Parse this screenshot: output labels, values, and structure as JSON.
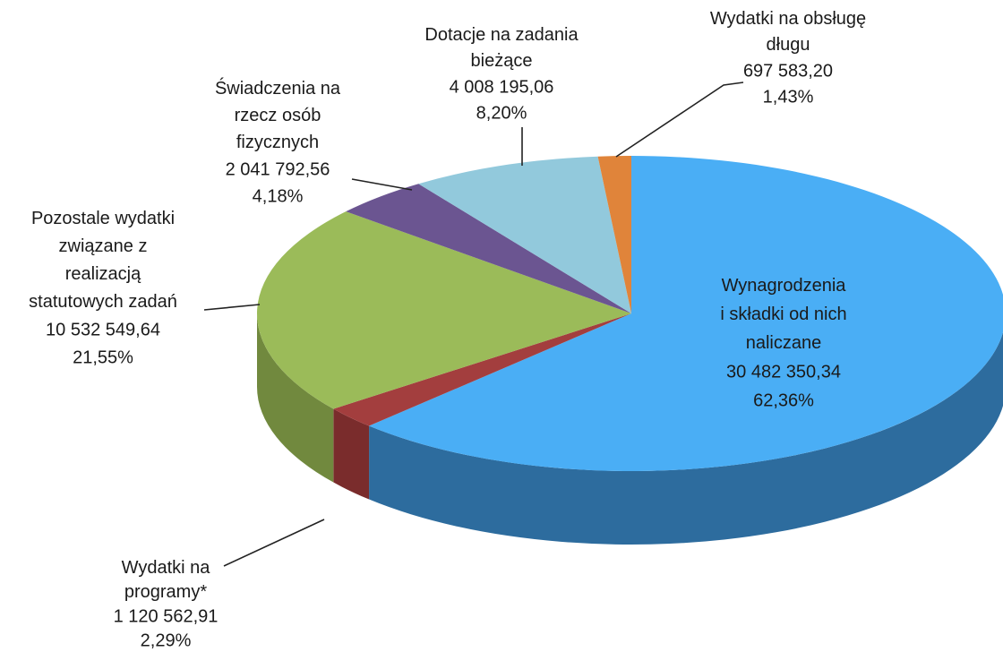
{
  "chart_data": {
    "type": "pie3d",
    "categories": [
      "Wynagrodzenia\ni składki od nich\nnaliczane",
      "Wydatki na\nprogramy*",
      "Pozostale wydatki\nzwiązane z\nrealizacją\nstatutowych zadań",
      "Świadczenia na\nrzecz osób\nfizycznych",
      "Dotacje na zadania\nbieżące",
      "Wydatki na obsługę\ndługu"
    ],
    "values": [
      30482350.34,
      1120562.91,
      10532549.64,
      2041792.56,
      4008195.06,
      697583.2
    ],
    "value_labels": [
      "30 482 350,34",
      "1 120 562,91",
      "10 532 549,64",
      "2 041 792,56",
      "4 008 195,06",
      "697 583,20"
    ],
    "percents": [
      62.36,
      2.29,
      21.55,
      4.18,
      8.2,
      1.43
    ],
    "percent_labels": [
      "62,36%",
      "2,29%",
      "21,55%",
      "4,18%",
      "8,20%",
      "1,43%"
    ],
    "colors": [
      "#4aaef5",
      "#a33e3e",
      "#9bbb59",
      "#6b5591",
      "#92c9dc",
      "#e0843a"
    ],
    "side_colors": [
      "#2d6c9e",
      "#7a2c2c",
      "#71893e",
      "#4c3c68",
      "#6a99a8",
      "#a85f24"
    ]
  }
}
